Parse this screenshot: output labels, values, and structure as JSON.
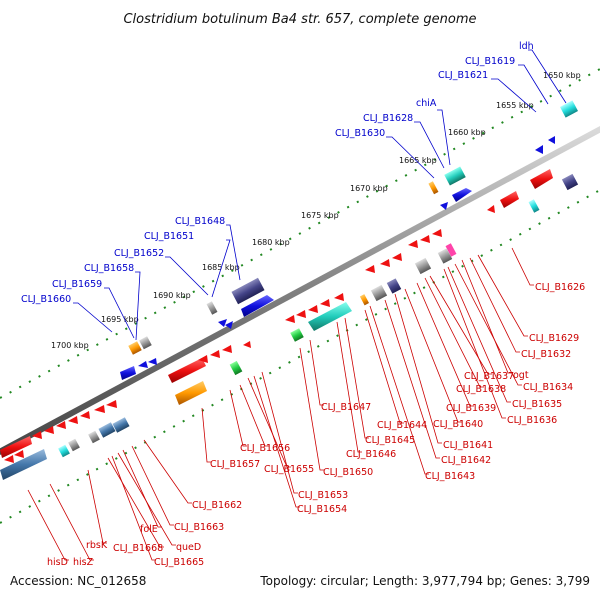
{
  "title": "Clostridium botulinum Ba4 str. 657, complete genome",
  "footer": {
    "accession": "Accession: NC_012658",
    "topology": "Topology: circular; Length: 3,977,794 bp; Genes: 3,799"
  },
  "colors": {
    "backbone": "#808080",
    "forward_label": "#0000cc",
    "reverse_label": "#cc0000",
    "tick": "#228822",
    "forward_gene": "#1010dd",
    "reverse_gene": "#ee1111"
  },
  "kbp_labels": [
    "1650 kbp",
    "1655 kbp",
    "1660 kbp",
    "1665 kbp",
    "1670 kbp",
    "1675 kbp",
    "1680 kbp",
    "1685 kbp",
    "1690 kbp",
    "1695 kbp",
    "1700 kbp"
  ],
  "forward_labels": [
    "ldh",
    "CLJ_B1619",
    "CLJ_B1621",
    "chiA",
    "CLJ_B1628",
    "CLJ_B1630",
    "CLJ_B1648",
    "CLJ_B1651",
    "CLJ_B1652",
    "CLJ_B1658",
    "CLJ_B1659",
    "CLJ_B1660"
  ],
  "reverse_labels": [
    "CLJ_B1626",
    "CLJ_B1629",
    "CLJ_B1632",
    "ogt",
    "CLJ_B1634",
    "CLJ_B1635",
    "CLJ_B1636",
    "CLJ_B1637",
    "CLJ_B1638",
    "CLJ_B1639",
    "CLJ_B1640",
    "CLJ_B1641",
    "CLJ_B1642",
    "CLJ_B1643",
    "CLJ_B1644",
    "CLJ_B1645",
    "CLJ_B1646",
    "CLJ_B1647",
    "CLJ_B1650",
    "CLJ_B1653",
    "CLJ_B1654",
    "CLJ_B1655",
    "CLJ_B1656",
    "CLJ_B1657",
    "CLJ_B1662",
    "CLJ_B1663",
    "folE",
    "queD",
    "CLJ_B1665",
    "CLJ_B1668",
    "rbsK",
    "hisD",
    "hisZ"
  ]
}
